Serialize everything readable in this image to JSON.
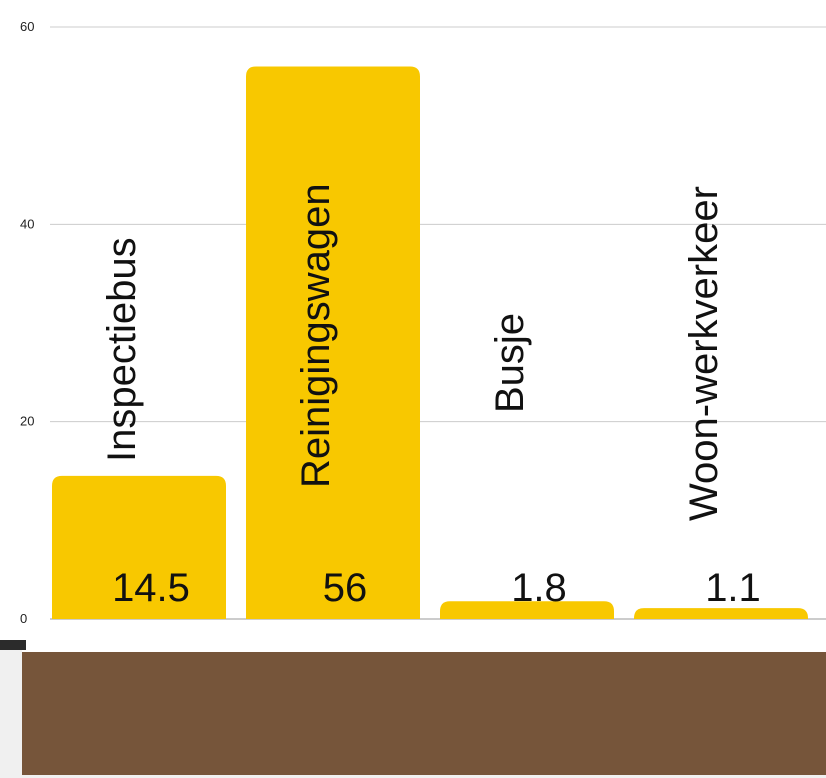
{
  "chart_data": {
    "type": "bar",
    "categories": [
      "Inspectiebus",
      "Reinigingswagen",
      "Busje",
      "Woon-werkverkeer"
    ],
    "values": [
      14.5,
      56,
      1.8,
      1.1
    ],
    "value_labels": [
      "14.5",
      "56",
      "1.8",
      "1.1"
    ],
    "yticks": [
      "0",
      "20",
      "40",
      "60"
    ],
    "ylim": [
      0,
      60
    ],
    "grid": true,
    "bar_color": "#f8c800",
    "grid_color": "#cccccc"
  },
  "footer": {
    "panel_color": "#76553a"
  }
}
